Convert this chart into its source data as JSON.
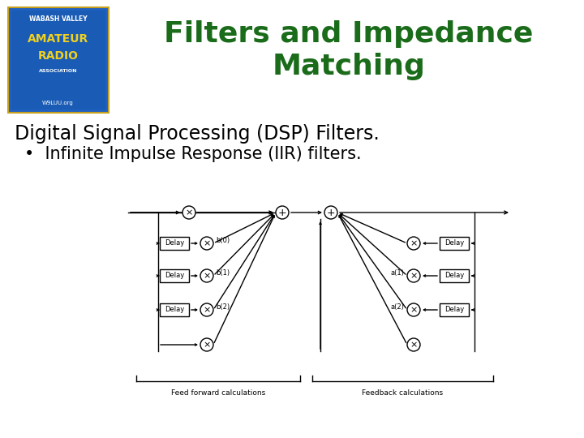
{
  "title_line1": "Filters and Impedance",
  "title_line2": "Matching",
  "title_color": "#1a6b1a",
  "heading": "Digital Signal Processing (DSP) Filters.",
  "bullet": "Infinite Impulse Response (IIR) filters.",
  "bg_color": "#ffffff",
  "heading_fontsize": 17,
  "title_fontsize": 26,
  "bullet_fontsize": 15,
  "diagram_label_left": "Feed forward calculations",
  "diagram_label_right": "Feedback calculations",
  "logo_bg": "#1a5cb5",
  "logo_border": "#c8a020"
}
